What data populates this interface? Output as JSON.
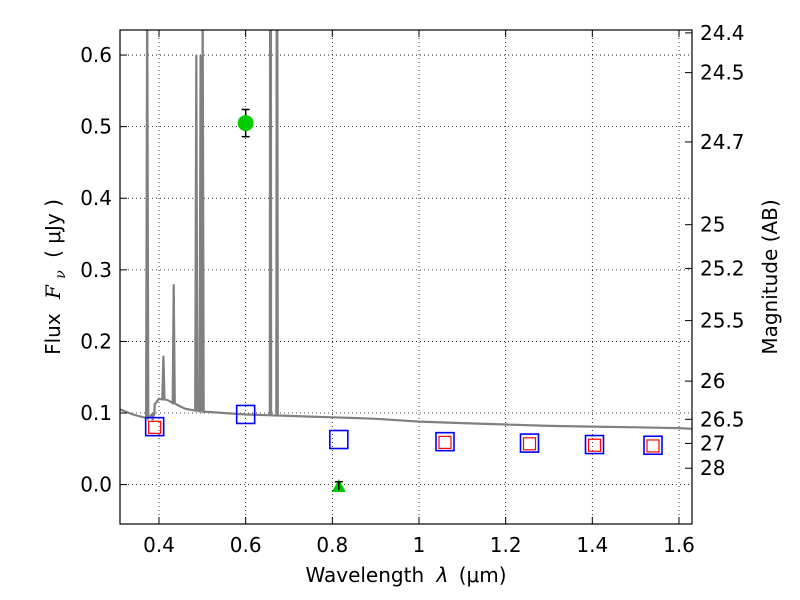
{
  "chart_data": {
    "type": "scatter",
    "xlabel_text": "Wavelength",
    "xlabel_symbol": "λ",
    "xlabel_unit": "(μm)",
    "ylabel_text": "Flux",
    "ylabel_symbol": "F",
    "ylabel_subscript": "ν",
    "ylabel_unit": "( μJy )",
    "y2label": "Magnitude (AB)",
    "xlim": [
      0.31,
      1.63
    ],
    "ylim": [
      -0.055,
      0.635
    ],
    "x_ticks": [
      0.4,
      0.6,
      0.8,
      1.0,
      1.2,
      1.4,
      1.6
    ],
    "x_tick_labels": [
      "0.4",
      "0.6",
      "0.8",
      "1",
      "1.2",
      "1.4",
      "1.6"
    ],
    "y_ticks": [
      0.0,
      0.1,
      0.2,
      0.3,
      0.4,
      0.5,
      0.6
    ],
    "y_tick_labels": [
      "0.0",
      "0.1",
      "0.2",
      "0.3",
      "0.4",
      "0.5",
      "0.6"
    ],
    "mag_ticks": [
      24.4,
      24.5,
      24.7,
      25,
      25.2,
      25.5,
      26,
      26.5,
      27,
      28
    ],
    "mag_tick_labels": [
      "24.4",
      "24.5",
      "24.7",
      "25",
      "25.2",
      "25.5",
      "26",
      "26.5",
      "27",
      "28"
    ],
    "grid": true,
    "colors": {
      "model": "#808080",
      "model_photometry": "#0000ff",
      "observed_photometry": "#ff0000",
      "detection": "#00cc00",
      "errorbar": "#000000"
    },
    "series": [
      {
        "name": "model spectrum",
        "kind": "line",
        "continuum": [
          [
            0.31,
            0.105
          ],
          [
            0.34,
            0.098
          ],
          [
            0.37,
            0.093
          ],
          [
            0.385,
            0.09
          ],
          [
            0.39,
            0.112
          ],
          [
            0.4,
            0.12
          ],
          [
            0.42,
            0.118
          ],
          [
            0.44,
            0.112
          ],
          [
            0.46,
            0.106
          ],
          [
            0.5,
            0.102
          ],
          [
            0.55,
            0.1
          ],
          [
            0.6,
            0.098
          ],
          [
            0.65,
            0.097
          ],
          [
            0.7,
            0.096
          ],
          [
            0.75,
            0.095
          ],
          [
            0.8,
            0.094
          ],
          [
            0.85,
            0.093
          ],
          [
            0.9,
            0.092
          ],
          [
            0.95,
            0.09
          ],
          [
            1.0,
            0.088
          ],
          [
            1.1,
            0.086
          ],
          [
            1.2,
            0.084
          ],
          [
            1.3,
            0.082
          ],
          [
            1.4,
            0.081
          ],
          [
            1.5,
            0.08
          ],
          [
            1.6,
            0.079
          ],
          [
            1.63,
            0.078
          ]
        ],
        "emission_lines": [
          {
            "x": 0.3727,
            "peak": 0.7
          },
          {
            "x": 0.3869,
            "peak": 0.095
          },
          {
            "x": 0.4102,
            "peak": 0.18
          },
          {
            "x": 0.434,
            "peak": 0.28
          },
          {
            "x": 0.4861,
            "peak": 0.6
          },
          {
            "x": 0.4959,
            "peak": 0.6
          },
          {
            "x": 0.5007,
            "peak": 0.7
          },
          {
            "x": 0.6563,
            "peak": 0.7
          },
          {
            "x": 0.6583,
            "peak": 0.7
          },
          {
            "x": 0.6716,
            "peak": 0.7
          },
          {
            "x": 0.6731,
            "peak": 0.7
          }
        ]
      },
      {
        "name": "model photometry",
        "kind": "open-square",
        "points": [
          [
            0.39,
            0.081
          ],
          [
            0.6,
            0.098
          ],
          [
            0.815,
            0.063
          ],
          [
            1.06,
            0.06
          ],
          [
            1.255,
            0.058
          ],
          [
            1.405,
            0.056
          ],
          [
            1.54,
            0.055
          ]
        ]
      },
      {
        "name": "observed photometry",
        "kind": "open-square",
        "points": [
          [
            0.39,
            0.08
          ],
          [
            1.06,
            0.059
          ],
          [
            1.255,
            0.057
          ],
          [
            1.405,
            0.055
          ],
          [
            1.54,
            0.054
          ]
        ]
      },
      {
        "name": "detection",
        "kind": "circle",
        "points": [
          [
            0.6,
            0.505
          ]
        ],
        "errors": [
          0.019
        ]
      },
      {
        "name": "non-detection",
        "kind": "triangle",
        "points": [
          [
            0.815,
            -0.002
          ]
        ],
        "errors": [
          0.006
        ]
      }
    ]
  }
}
